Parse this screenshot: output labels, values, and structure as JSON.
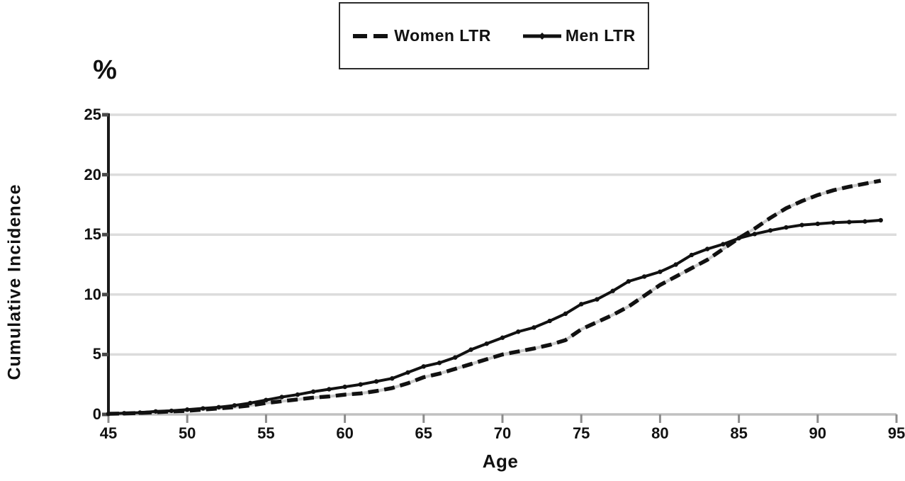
{
  "chart_data": {
    "type": "line",
    "title": "",
    "xlabel": "Age",
    "ylabel": "Cumulative Incidence",
    "y_unit_label": "%",
    "xlim": [
      45,
      95
    ],
    "ylim": [
      0,
      25
    ],
    "xticks": [
      45,
      50,
      55,
      60,
      65,
      70,
      75,
      80,
      85,
      90,
      95
    ],
    "yticks": [
      0,
      5,
      10,
      15,
      20,
      25
    ],
    "grid": "horizontal",
    "legend_position": "top-center",
    "x": [
      45,
      46,
      47,
      48,
      49,
      50,
      51,
      52,
      53,
      54,
      55,
      56,
      57,
      58,
      59,
      60,
      61,
      62,
      63,
      64,
      65,
      66,
      67,
      68,
      69,
      70,
      71,
      72,
      73,
      74,
      75,
      76,
      77,
      78,
      79,
      80,
      81,
      82,
      83,
      84,
      85,
      86,
      87,
      88,
      89,
      90,
      91,
      92,
      93,
      94
    ],
    "series": [
      {
        "name": "Women LTR",
        "style": "dashed",
        "color": "#111111",
        "values": [
          0.05,
          0.08,
          0.12,
          0.18,
          0.25,
          0.3,
          0.4,
          0.5,
          0.6,
          0.75,
          0.95,
          1.1,
          1.25,
          1.4,
          1.5,
          1.65,
          1.75,
          1.95,
          2.2,
          2.6,
          3.1,
          3.4,
          3.8,
          4.2,
          4.6,
          5.0,
          5.25,
          5.5,
          5.8,
          6.2,
          7.1,
          7.7,
          8.3,
          9.0,
          9.9,
          10.8,
          11.5,
          12.2,
          12.9,
          13.8,
          14.7,
          15.5,
          16.4,
          17.2,
          17.8,
          18.3,
          18.7,
          19.0,
          19.25,
          19.5
        ]
      },
      {
        "name": "Men LTR",
        "style": "solid-with-markers",
        "color": "#111111",
        "values": [
          0.05,
          0.1,
          0.15,
          0.25,
          0.3,
          0.4,
          0.5,
          0.6,
          0.75,
          0.95,
          1.2,
          1.45,
          1.65,
          1.9,
          2.1,
          2.3,
          2.5,
          2.75,
          3.0,
          3.5,
          4.0,
          4.3,
          4.75,
          5.4,
          5.9,
          6.4,
          6.9,
          7.25,
          7.8,
          8.4,
          9.2,
          9.6,
          10.3,
          11.1,
          11.5,
          11.9,
          12.5,
          13.3,
          13.8,
          14.2,
          14.7,
          15.05,
          15.35,
          15.6,
          15.8,
          15.9,
          16.0,
          16.05,
          16.1,
          16.2
        ]
      }
    ],
    "colors": {
      "line": "#111111",
      "grid": "#dcdcdc",
      "axis": "#1a1a1a",
      "x_tick": "#8c8c8c",
      "y_tick": "#4a4a4a",
      "baseline": "#c0c0c0",
      "dash_underlay": "#c9c9c9"
    }
  }
}
